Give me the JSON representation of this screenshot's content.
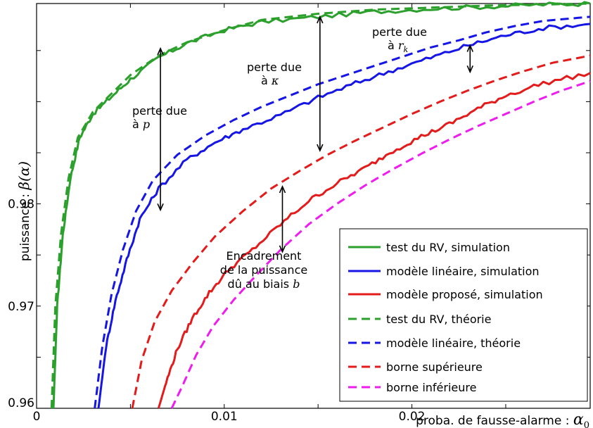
{
  "chart_data": {
    "type": "line",
    "xlabel": "proba. de fausse-alarme : ",
    "xlabel_symbol": "α",
    "xlabel_sub": "0",
    "ylabel": "puissance : ",
    "ylabel_symbol": "β(α)",
    "xlim": [
      0,
      0.0295
    ],
    "ylim": [
      0.96,
      0.9996
    ],
    "x_ticks": [
      0,
      0.01,
      0.02
    ],
    "x_tick_labels": [
      "0",
      "0.01",
      "0.02"
    ],
    "y_ticks": [
      0.96,
      0.97,
      0.98
    ],
    "y_tick_labels": [
      "0.96",
      "0.97",
      "0.98"
    ],
    "grid": false,
    "legend_position": "bottom-right",
    "series": [
      {
        "name": "test du RV, simulation",
        "color": "#2ca02c",
        "style": "solid",
        "x": [
          0.0009,
          0.0011,
          0.0014,
          0.0018,
          0.0023,
          0.003,
          0.004,
          0.005,
          0.0065,
          0.008,
          0.01,
          0.012,
          0.015,
          0.018,
          0.021,
          0.024,
          0.027,
          0.0295
        ],
        "y": [
          0.96,
          0.97,
          0.977,
          0.9825,
          0.9865,
          0.9888,
          0.9905,
          0.9922,
          0.9943,
          0.9957,
          0.997,
          0.9978,
          0.9983,
          0.9988,
          0.9991,
          0.9993,
          0.9995,
          0.9996
        ]
      },
      {
        "name": "modèle linéaire, simulation",
        "color": "#1515e6",
        "style": "solid",
        "x": [
          0.0033,
          0.0037,
          0.0042,
          0.0048,
          0.0055,
          0.0065,
          0.008,
          0.0095,
          0.011,
          0.013,
          0.015,
          0.017,
          0.019,
          0.021,
          0.023,
          0.025,
          0.027,
          0.0295
        ],
        "y": [
          0.96,
          0.966,
          0.9705,
          0.9745,
          0.9785,
          0.9815,
          0.9843,
          0.986,
          0.9873,
          0.9887,
          0.9904,
          0.9918,
          0.9931,
          0.9943,
          0.9955,
          0.9965,
          0.9972,
          0.9976
        ]
      },
      {
        "name": "modèle proposé, simulation",
        "color": "#e31b1b",
        "style": "solid",
        "x": [
          0.0065,
          0.0069,
          0.0075,
          0.0083,
          0.0092,
          0.0102,
          0.0115,
          0.013,
          0.0145,
          0.016,
          0.0175,
          0.019,
          0.0205,
          0.022,
          0.0235,
          0.025,
          0.027,
          0.0295
        ],
        "y": [
          0.96,
          0.9625,
          0.9658,
          0.9688,
          0.9713,
          0.9735,
          0.9755,
          0.978,
          0.9803,
          0.982,
          0.9835,
          0.9852,
          0.9866,
          0.9878,
          0.9893,
          0.9906,
          0.9918,
          0.9928
        ]
      },
      {
        "name": "test du RV, théorie",
        "color": "#2ca02c",
        "style": "dashed",
        "x": [
          0.0008,
          0.001,
          0.0013,
          0.0017,
          0.0022,
          0.003,
          0.004,
          0.005,
          0.0065,
          0.008,
          0.01,
          0.012,
          0.015,
          0.018,
          0.021,
          0.024,
          0.027,
          0.0295
        ],
        "y": [
          0.96,
          0.97,
          0.977,
          0.9825,
          0.9865,
          0.989,
          0.9908,
          0.9926,
          0.9945,
          0.9958,
          0.997,
          0.998,
          0.9986,
          0.999,
          0.9992,
          0.9994,
          0.9995,
          0.9996
        ]
      },
      {
        "name": "modèle linéaire, théorie",
        "color": "#1515e6",
        "style": "dashed",
        "x": [
          0.0031,
          0.0035,
          0.004,
          0.0046,
          0.0053,
          0.0062,
          0.0075,
          0.009,
          0.0105,
          0.012,
          0.0135,
          0.015,
          0.0165,
          0.018,
          0.0195,
          0.021,
          0.0225,
          0.024,
          0.0255,
          0.027,
          0.0295
        ],
        "y": [
          0.96,
          0.966,
          0.9712,
          0.9755,
          0.9793,
          0.9823,
          0.9848,
          0.9867,
          0.9882,
          0.9895,
          0.9906,
          0.9917,
          0.9926,
          0.9935,
          0.9944,
          0.9953,
          0.996,
          0.9968,
          0.9974,
          0.9979,
          0.9983
        ]
      },
      {
        "name": "borne supérieure",
        "color": "#e31b1b",
        "style": "dashed",
        "x": [
          0.0051,
          0.0056,
          0.0063,
          0.0072,
          0.0083,
          0.0095,
          0.011,
          0.0125,
          0.014,
          0.0155,
          0.017,
          0.0185,
          0.02,
          0.0215,
          0.023,
          0.0245,
          0.026,
          0.0275,
          0.0295
        ],
        "y": [
          0.96,
          0.9647,
          0.9685,
          0.9715,
          0.9742,
          0.9768,
          0.9793,
          0.9815,
          0.9832,
          0.9848,
          0.9862,
          0.9875,
          0.9888,
          0.99,
          0.9911,
          0.9921,
          0.993,
          0.9938,
          0.9945
        ]
      },
      {
        "name": "borne inférieure",
        "color": "#ee1cee",
        "style": "dashed",
        "x": [
          0.0072,
          0.0078,
          0.0085,
          0.0094,
          0.0105,
          0.0117,
          0.013,
          0.0145,
          0.016,
          0.0175,
          0.019,
          0.0205,
          0.022,
          0.0235,
          0.025,
          0.0265,
          0.028,
          0.0295
        ],
        "y": [
          0.96,
          0.9623,
          0.9652,
          0.968,
          0.9706,
          0.973,
          0.9755,
          0.978,
          0.98,
          0.9818,
          0.9834,
          0.9849,
          0.9863,
          0.9876,
          0.9888,
          0.99,
          0.9911,
          0.992
        ]
      }
    ],
    "annotations": [
      {
        "lines": [
          "perte due",
          "à "
        ],
        "symbol": "p"
      },
      {
        "lines": [
          "perte due",
          "à "
        ],
        "symbol": "κ"
      },
      {
        "lines": [
          "perte due",
          "à "
        ],
        "symbol": "r",
        "symbol_sub": "k"
      },
      {
        "lines": [
          "Encadrement",
          "de la puissance",
          "dû au biais "
        ],
        "symbol": "b"
      }
    ],
    "arrows": [
      {
        "x": 0.0066,
        "y_from": 0.9794,
        "y_to": 0.9952
      },
      {
        "x": 0.0151,
        "y_from": 0.9852,
        "y_to": 0.9983
      },
      {
        "x": 0.0231,
        "y_from": 0.9929,
        "y_to": 0.9955
      },
      {
        "x": 0.0131,
        "y_from": 0.9753,
        "y_to": 0.9817
      }
    ]
  }
}
